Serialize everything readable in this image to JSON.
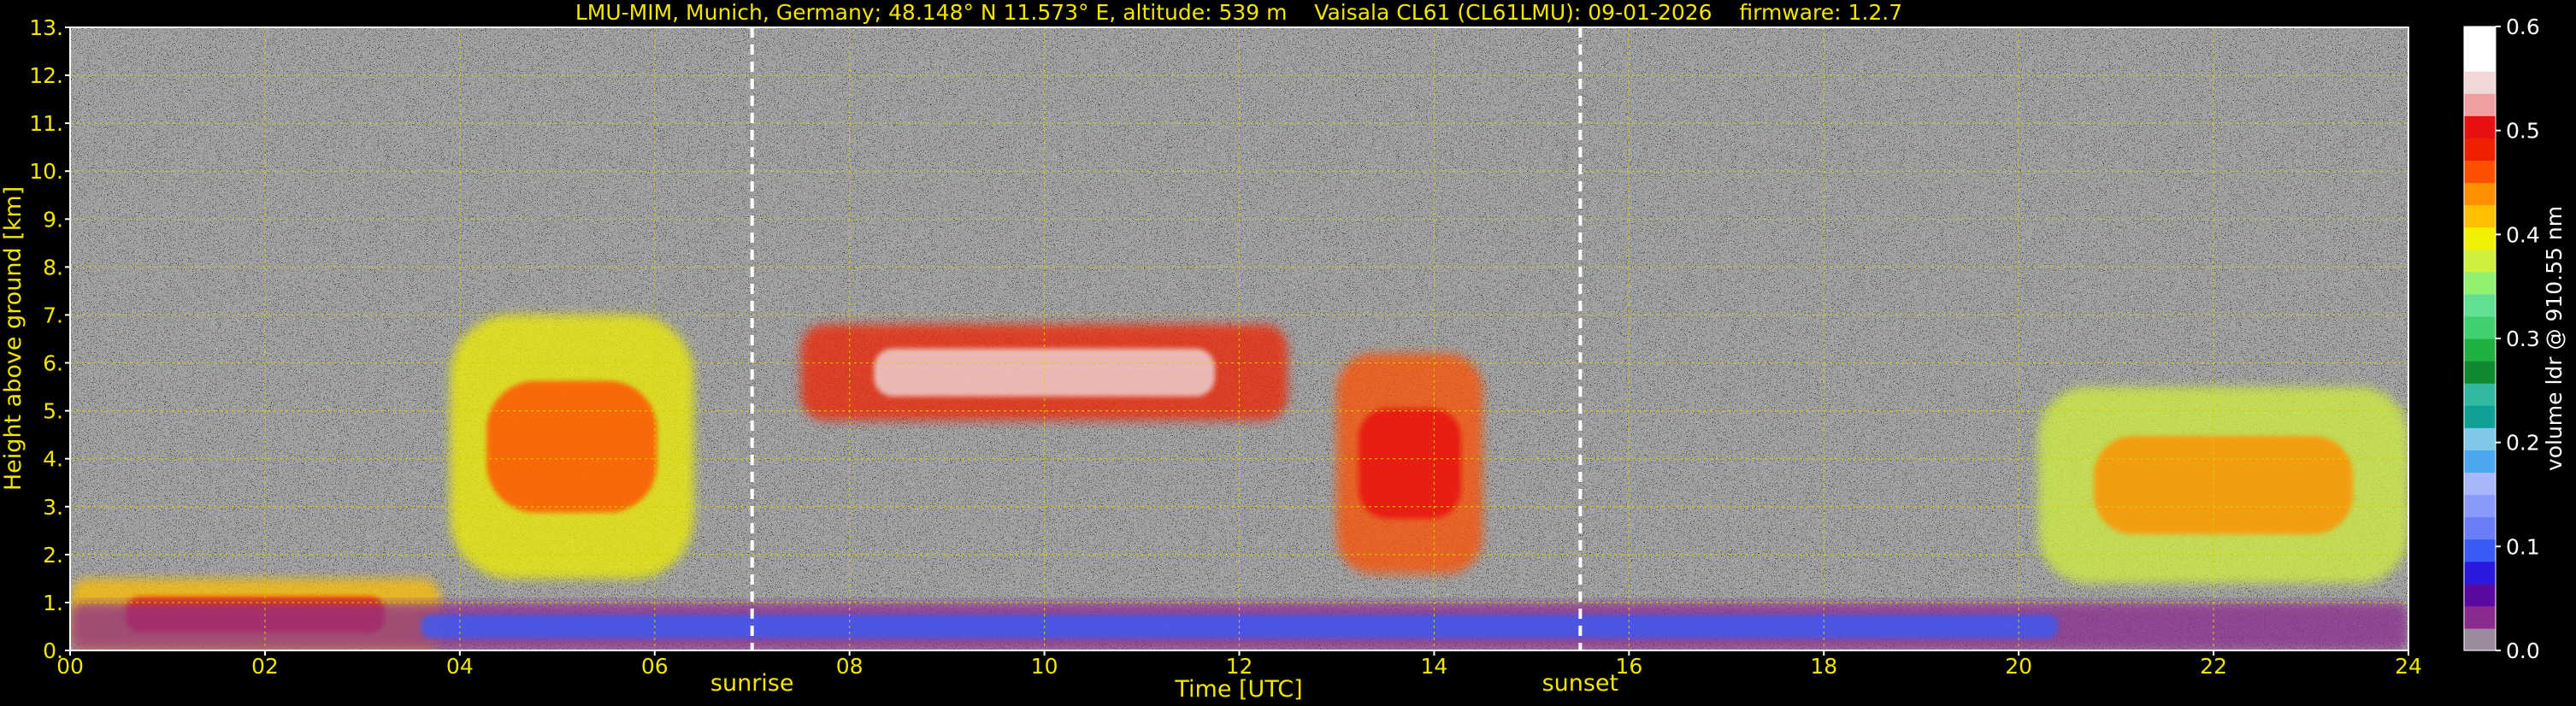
{
  "chart_data": {
    "type": "heatmap",
    "title": "LMU-MIM, Munich, Germany; 48.148° N 11.573° E, altitude: 539 m    Vaisala CL61 (CL61LMU): 09-01-2026    firmware: 1.2.7",
    "xlabel": "Time [UTC]",
    "ylabel": "Height above ground [km]",
    "xlim": [
      0,
      24
    ],
    "ylim": [
      0,
      13
    ],
    "xticks": [
      "00",
      "02",
      "04",
      "06",
      "08",
      "10",
      "12",
      "14",
      "16",
      "18",
      "20",
      "22",
      "24"
    ],
    "yticks": [
      "0.",
      "1.",
      "2.",
      "3.",
      "4.",
      "5.",
      "6.",
      "7.",
      "8.",
      "9.",
      "10.",
      "11.",
      "12.",
      "13."
    ],
    "grid": true,
    "colorbar": {
      "label": "volume ldr @ 910.55 nm",
      "range": [
        0.0,
        0.6
      ],
      "ticks": [
        "0.0",
        "0.1",
        "0.2",
        "0.3",
        "0.4",
        "0.5",
        "0.6"
      ],
      "colors": [
        "#9a8a9c",
        "#8a2a8e",
        "#5a0aa0",
        "#2a1ae0",
        "#3a5af6",
        "#6a7ef8",
        "#8a9afa",
        "#a8b6fc",
        "#4aa8f0",
        "#80c8e8",
        "#10a098",
        "#30b8a0",
        "#108a30",
        "#20b040",
        "#40d070",
        "#60e090",
        "#90f070",
        "#d0f040",
        "#f0f000",
        "#ffc000",
        "#ff9000",
        "#ff5000",
        "#f02000",
        "#e81010",
        "#f0a0a0",
        "#f0d8d8",
        "#ffffff",
        "#ffffff"
      ]
    },
    "markers": [
      {
        "label": "sunrise",
        "x": 7.0
      },
      {
        "label": "sunset",
        "x": 15.5
      }
    ],
    "features": [
      {
        "x": [
          0.0,
          3.8
        ],
        "y": [
          0.0,
          1.5
        ],
        "level": 0.42
      },
      {
        "x": [
          3.9,
          6.4
        ],
        "y": [
          1.5,
          7.0
        ],
        "level": 0.4
      },
      {
        "x": [
          7.5,
          12.5
        ],
        "y": [
          4.8,
          6.8
        ],
        "level": 0.48
      },
      {
        "x": [
          13.0,
          14.5
        ],
        "y": [
          1.6,
          6.2
        ],
        "level": 0.45
      },
      {
        "x": [
          20.2,
          24.0
        ],
        "y": [
          1.4,
          5.5
        ],
        "level": 0.38
      },
      {
        "x": [
          0.0,
          24.0
        ],
        "y": [
          0.0,
          1.0
        ],
        "level": 0.04
      }
    ]
  }
}
